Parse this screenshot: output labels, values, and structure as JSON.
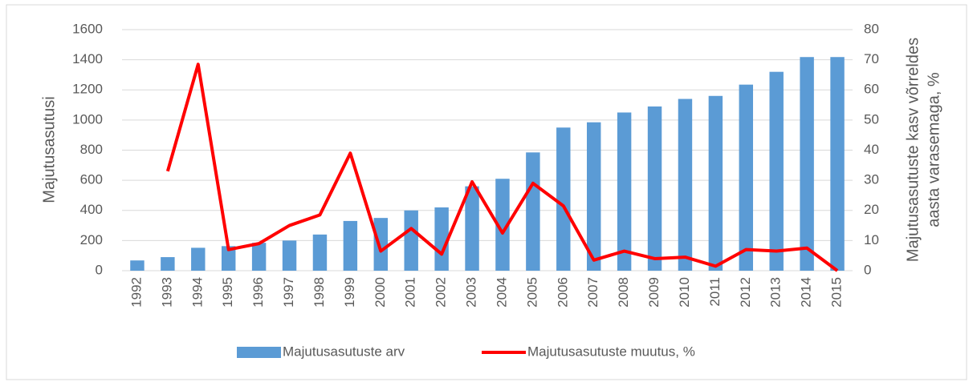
{
  "chart_data": {
    "type": "bar",
    "categories": [
      "1992",
      "1993",
      "1994",
      "1995",
      "1996",
      "1997",
      "1998",
      "1999",
      "2000",
      "2001",
      "2002",
      "2003",
      "2004",
      "2005",
      "2006",
      "2007",
      "2008",
      "2009",
      "2010",
      "2011",
      "2012",
      "2013",
      "2014",
      "2015"
    ],
    "series": [
      {
        "name": "Majutusasutuste arv",
        "type": "bar",
        "color": "#5b9bd5",
        "values": [
          68,
          90,
          152,
          163,
          185,
          200,
          240,
          330,
          350,
          400,
          420,
          560,
          610,
          785,
          950,
          985,
          1050,
          1090,
          1140,
          1160,
          1235,
          1320,
          1418,
          1418
        ]
      },
      {
        "name": "Majutusasutuste muutus, %",
        "type": "line",
        "axis": "y2",
        "color": "#ff0000",
        "values": [
          null,
          33,
          68.5,
          7,
          9,
          15,
          18.5,
          39,
          6.5,
          14,
          5.5,
          29.5,
          12.5,
          29,
          21.5,
          3.5,
          6.5,
          4,
          4.5,
          1.5,
          7,
          6.5,
          7.5,
          0
        ]
      }
    ],
    "ylabel": "Majutusasutusi",
    "y2label": [
      "Majutusasutuste kasv võrreldes",
      "aasta varasemaga, %"
    ],
    "ylim": [
      0,
      1600
    ],
    "yticks": [
      0,
      200,
      400,
      600,
      800,
      1000,
      1200,
      1400,
      1600
    ],
    "y2lim": [
      0,
      80
    ],
    "y2ticks": [
      0,
      10,
      20,
      30,
      40,
      50,
      60,
      70,
      80
    ],
    "grid": true,
    "legend": "bottom"
  }
}
